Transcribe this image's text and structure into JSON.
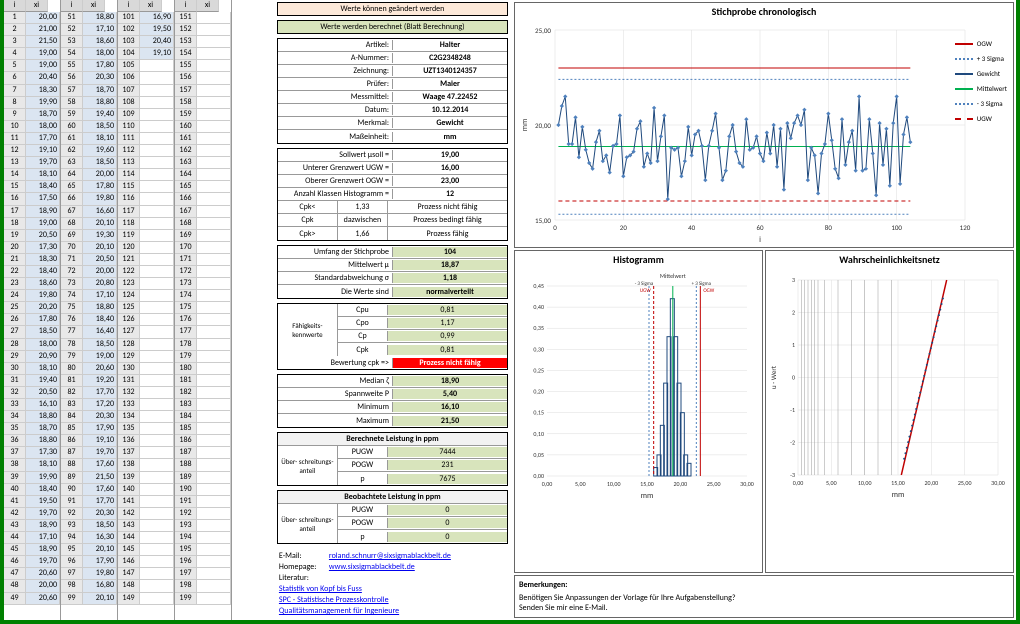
{
  "green_header": "Werte werden berechnet (Blatt Berechnung)",
  "warn_header": "Werte können geändert werden",
  "article": {
    "label_article": "Artikel:",
    "val_article": "Halter",
    "label_anum": "A-Nummer:",
    "val_anum": "C2G2348248",
    "label_drawing": "Zeichnung:",
    "val_drawing": "UZT1340124357",
    "label_pruefer": "Prüfer:",
    "val_pruefer": "Maier",
    "label_mess": "Messmittel:",
    "val_mess": "Waage 47.22452",
    "label_date": "Datum:",
    "val_date": "10.12.2014",
    "label_merk": "Merkmal:",
    "val_merk": "Gewicht",
    "label_unit": "Maßeinheit:",
    "val_unit": "mm"
  },
  "limits": {
    "label_soll": "Sollwert μsoll =",
    "val_soll": "19,00",
    "label_ugw": "Unterer Grenzwert UGW =",
    "val_ugw": "16,00",
    "label_ogw": "Oberer Grenzwert OGW =",
    "val_ogw": "23,00",
    "label_hist": "Anzahl Klassen Histogramm =",
    "val_hist": "12",
    "label_cpk1": "Cpk<",
    "val_cpk1": "1,33",
    "txt_cpk1": "Prozess nicht fähig",
    "label_cpk2": "Cpk",
    "val_cpk2": "dazwischen",
    "txt_cpk2": "Prozess bedingt fähig",
    "label_cpk3": "Cpk>",
    "val_cpk3": "1,66",
    "txt_cpk3": "Prozess fähig"
  },
  "stats": {
    "label_n": "Umfang der Stichprobe",
    "val_n": "104",
    "label_mean": "Mittelwert μ",
    "val_mean": "18,87",
    "label_std": "Standardabweichung σ",
    "val_std": "1,18",
    "label_dist": "Die Werte sind",
    "val_dist": "normalverteilt"
  },
  "capability": {
    "header": "Fähigkeits-kennwerte",
    "r1l": "Cpu",
    "r1v": "0,81",
    "r2l": "Cpo",
    "r2v": "1,17",
    "r3l": "Cp",
    "r3v": "0,99",
    "r4l": "Cpk",
    "r4v": "0,81",
    "bewl": "Bewertung cpk =>",
    "bewv": "Prozess nicht fähig"
  },
  "median": {
    "l1": "Median ζ",
    "v1": "18,90",
    "l2": "Spannweite P",
    "v2": "5,40",
    "l3": "Minimum",
    "v3": "16,10",
    "l4": "Maximum",
    "v4": "21,50"
  },
  "calc_ppm": {
    "title": "Berechnete Leistung in ppm",
    "side": "Über- schreitungs- anteil",
    "l1": "PUGW",
    "v1": "7444",
    "l2": "POGW",
    "v2": "231",
    "l3": "p",
    "v3": "7675"
  },
  "obs_ppm": {
    "title": "Beobachtete Leistung in ppm",
    "side": "Über- schreitungs- anteil",
    "l1": "PUGW",
    "v1": "0",
    "l2": "POGW",
    "v2": "0",
    "l3": "p",
    "v3": "0"
  },
  "links": {
    "email_l": "E-Mail:",
    "email": "roland.schnurr@sixsigmablackbelt.de",
    "home_l": "Homepage:",
    "home": "www.sixsigmablackbelt.de",
    "lit_l": "Literatur:",
    "lit1": "Statistik von Kopf bis Fuss",
    "lit2": "SPC - Statistische Prozesskontrolle",
    "lit3": "Qualitätsmanagement für Ingenieure"
  },
  "chart1": {
    "title": "Stichprobe chronologisch",
    "ylabel": "mm",
    "xlabel": "i",
    "yticks": [
      "15,00",
      "20,00",
      "25,00"
    ],
    "xticks": [
      "0",
      "20",
      "40",
      "60",
      "80",
      "100",
      "120"
    ],
    "ogw": 23,
    "ugw": 16,
    "mean": 18.87,
    "p3s": 22.4,
    "m3s": 15.3,
    "legend": [
      "OGW",
      "+ 3 Sigma",
      "Gewicht",
      "Mittelwert",
      "- 3 Sigma",
      "UGW"
    ],
    "legend_colors": [
      "#c00000",
      "#4f81bd",
      "#1f497d",
      "#00b050",
      "#4f81bd",
      "#c00000"
    ],
    "legend_dash": [
      "solid",
      "dotted",
      "solid",
      "solid",
      "dotted",
      "dashed"
    ],
    "data": [
      20.0,
      21.0,
      21.5,
      19.0,
      19.0,
      20.4,
      18.3,
      19.9,
      18.7,
      18.0,
      17.7,
      19.1,
      19.7,
      18.1,
      18.4,
      17.5,
      18.9,
      19.0,
      20.5,
      17.3,
      18.3,
      18.4,
      18.6,
      19.8,
      20.2,
      17.8,
      18.5,
      18.0,
      20.9,
      18.1,
      19.4,
      20.5,
      16.1,
      18.8,
      18.7,
      18.8,
      17.3,
      18.1,
      19.9,
      18.4,
      19.5,
      19.7,
      18.9,
      17.1,
      18.9,
      19.7,
      20.6,
      18.8,
      17.1,
      17.6,
      19.4,
      20.0,
      18.6,
      18.0,
      17.8,
      20.3,
      18.7,
      18.8,
      19.4,
      18.5,
      18.1,
      19.6,
      18.5,
      20.0,
      17.8,
      19.8,
      16.6,
      20.1,
      19.3,
      20.1,
      20.5,
      20.0,
      20.8,
      17.1,
      18.8,
      18.4,
      16.4,
      18.5,
      19.0,
      20.6,
      19.2,
      17.7,
      17.2,
      20.3,
      17.9,
      19.1,
      19.7,
      17.6,
      21.5,
      17.6,
      17.7,
      20.3,
      18.5,
      16.3,
      20.1,
      17.9,
      19.8,
      16.8,
      20.1,
      21.5,
      16.9,
      19.5,
      20.4,
      19.1
    ]
  },
  "chart2": {
    "title": "Histogramm",
    "xlabel": "mm",
    "mitlabel": "Mittelwert",
    "yticks": [
      "0,00",
      "0,05",
      "0,10",
      "0,15",
      "0,20",
      "0,25",
      "0,30",
      "0,35",
      "0,40",
      "0,45"
    ],
    "xticks": [
      "0,00",
      "5,00",
      "10,00",
      "15,00",
      "20,00",
      "25,00",
      "30,00"
    ],
    "bars": [
      {
        "x": 16.3,
        "h": 0.02
      },
      {
        "x": 16.8,
        "h": 0.05
      },
      {
        "x": 17.3,
        "h": 0.12
      },
      {
        "x": 17.8,
        "h": 0.22
      },
      {
        "x": 18.3,
        "h": 0.33
      },
      {
        "x": 18.8,
        "h": 0.42
      },
      {
        "x": 19.3,
        "h": 0.33
      },
      {
        "x": 19.8,
        "h": 0.22
      },
      {
        "x": 20.3,
        "h": 0.15
      },
      {
        "x": 20.8,
        "h": 0.05
      },
      {
        "x": 21.3,
        "h": 0.03
      }
    ],
    "ugw": 16,
    "ogw": 23,
    "m3s": 15.3,
    "p3s": 22.4,
    "mean": 18.87
  },
  "chart3": {
    "title": "Wahrscheinlichkeitsnetz",
    "xlabel": "mm",
    "ylabel": "u - Wert",
    "yticks": [
      "-3",
      "-2",
      "-1",
      "0",
      "1",
      "2",
      "3"
    ],
    "xticks": [
      "0,00",
      "5,00",
      "10,00",
      "15,00",
      "20,00",
      "25,00",
      "30,00"
    ]
  },
  "remarks": {
    "title": "Bemerkungen:",
    "line1": "Benötigen Sie Anpassungen der Vorlage für Ihre Aufgabenstellung?",
    "line2": "Senden Sie mir eine E-Mail."
  },
  "data_columns": [
    {
      "start": 1,
      "vals": [
        "20,00",
        "21,00",
        "21,50",
        "19,00",
        "19,00",
        "20,40",
        "18,30",
        "19,90",
        "18,70",
        "18,00",
        "17,70",
        "19,10",
        "19,70",
        "18,10",
        "18,40",
        "17,50",
        "18,90",
        "19,00",
        "20,50",
        "17,30",
        "18,30",
        "18,40",
        "18,60",
        "19,80",
        "20,20",
        "17,80",
        "18,50",
        "18,00",
        "20,90",
        "18,10",
        "19,40",
        "20,50",
        "16,10",
        "18,80",
        "18,70",
        "18,80",
        "17,30",
        "18,10",
        "19,90",
        "18,40",
        "19,50",
        "19,70",
        "18,90",
        "17,10",
        "18,90",
        "19,70",
        "20,60",
        "20,00",
        "20,60"
      ]
    },
    {
      "start": 51,
      "vals": [
        "18,80",
        "17,10",
        "18,60",
        "18,00",
        "17,80",
        "20,30",
        "18,70",
        "18,80",
        "19,40",
        "18,50",
        "18,10",
        "19,60",
        "18,50",
        "20,00",
        "17,80",
        "19,80",
        "16,60",
        "20,10",
        "19,30",
        "20,10",
        "20,50",
        "20,00",
        "20,80",
        "17,10",
        "18,80",
        "18,40",
        "16,40",
        "18,50",
        "19,00",
        "20,60",
        "19,20",
        "17,70",
        "17,20",
        "20,30",
        "17,90",
        "19,10",
        "19,70",
        "17,60",
        "21,50",
        "17,60",
        "17,70",
        "20,30",
        "18,50",
        "16,30",
        "20,10",
        "17,90",
        "19,80",
        "16,80",
        "20,10"
      ]
    },
    {
      "start": 101,
      "vals": [
        "16,90",
        "19,50",
        "20,40",
        "19,10"
      ]
    },
    {
      "start": 151,
      "vals": []
    }
  ]
}
